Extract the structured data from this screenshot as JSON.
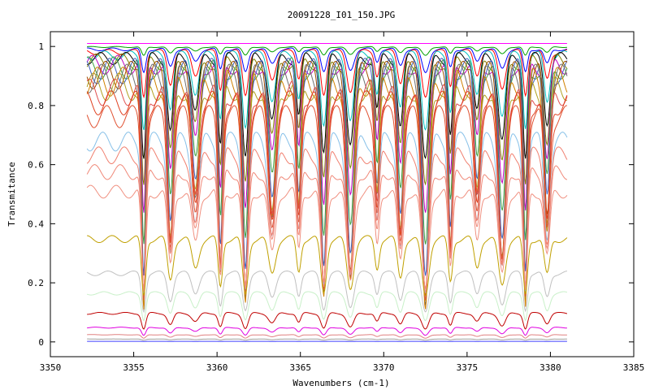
{
  "chart_data": {
    "type": "line",
    "title": "20091228_I01_150.JPG",
    "xlabel": "Wavenumbers (cm-1)",
    "ylabel": "Transmitance",
    "xlim": [
      3350,
      3385
    ],
    "ylim": [
      -0.05,
      1.05
    ],
    "x_data_range": [
      3352.2,
      3381.0
    ],
    "x_ticks": [
      "3350",
      "3355",
      "3360",
      "3365",
      "3370",
      "3375",
      "3380",
      "3385"
    ],
    "y_ticks": [
      "0",
      "0.2",
      "0.4",
      "0.6",
      "0.8",
      "1"
    ],
    "grid": false,
    "legend": "none",
    "absorption_line_positions": [
      3355.6,
      3357.2,
      3358.7,
      3360.2,
      3361.7,
      3363.3,
      3364.9,
      3366.4,
      3368.0,
      3369.6,
      3371.0,
      3372.5,
      3374.0,
      3375.6,
      3377.1,
      3378.5,
      3379.8
    ],
    "series": [
      {
        "baseline": 1.01,
        "depth": 0.0,
        "color": "#ff00ff"
      },
      {
        "baseline": 1.0,
        "depth": 0.03,
        "color": "#00a000"
      },
      {
        "baseline": 0.995,
        "depth": 0.08,
        "color": "#0000ff"
      },
      {
        "baseline": 0.99,
        "depth": 0.15,
        "color": "#ff0000"
      },
      {
        "baseline": 0.985,
        "depth": 0.25,
        "color": "#00c0c0"
      },
      {
        "baseline": 0.98,
        "depth": 0.35,
        "color": "#000000"
      },
      {
        "baseline": 0.975,
        "depth": 0.45,
        "color": "#808000"
      },
      {
        "baseline": 0.97,
        "depth": 0.55,
        "color": "#c000c0"
      },
      {
        "baseline": 0.965,
        "depth": 0.65,
        "color": "#40a040"
      },
      {
        "baseline": 0.96,
        "depth": 0.75,
        "color": "#4060c0"
      },
      {
        "baseline": 0.95,
        "depth": 0.82,
        "color": "#a05000"
      },
      {
        "baseline": 0.94,
        "depth": 0.86,
        "color": "#707070"
      },
      {
        "baseline": 0.93,
        "depth": 0.88,
        "color": "#d08000"
      },
      {
        "baseline": 0.91,
        "depth": 0.85,
        "color": "#b0a020"
      },
      {
        "baseline": 0.89,
        "depth": 0.84,
        "color": "#e05050"
      },
      {
        "baseline": 0.85,
        "depth": 0.8,
        "color": "#e04020"
      },
      {
        "baseline": 0.8,
        "depth": 0.78,
        "color": "#e05030"
      },
      {
        "baseline": 0.71,
        "depth": 0.75,
        "color": "#87c0e8"
      },
      {
        "baseline": 0.66,
        "depth": 0.72,
        "color": "#f08070"
      },
      {
        "baseline": 0.6,
        "depth": 0.7,
        "color": "#f08878"
      },
      {
        "baseline": 0.53,
        "depth": 0.68,
        "color": "#f09080"
      },
      {
        "baseline": 0.36,
        "depth": 0.55,
        "color": "#c0a000"
      },
      {
        "baseline": 0.24,
        "depth": 0.55,
        "color": "#c0c0c0"
      },
      {
        "baseline": 0.17,
        "depth": 0.55,
        "color": "#c8f0c8"
      },
      {
        "baseline": 0.1,
        "depth": 0.55,
        "color": "#c00000"
      },
      {
        "baseline": 0.05,
        "depth": 0.55,
        "color": "#e000e0"
      },
      {
        "baseline": 0.025,
        "depth": 0.5,
        "color": "#e08080"
      },
      {
        "baseline": 0.01,
        "depth": 0.4,
        "color": "#a0a0a0"
      },
      {
        "baseline": 0.002,
        "depth": 0.3,
        "color": "#4040ff"
      }
    ]
  }
}
